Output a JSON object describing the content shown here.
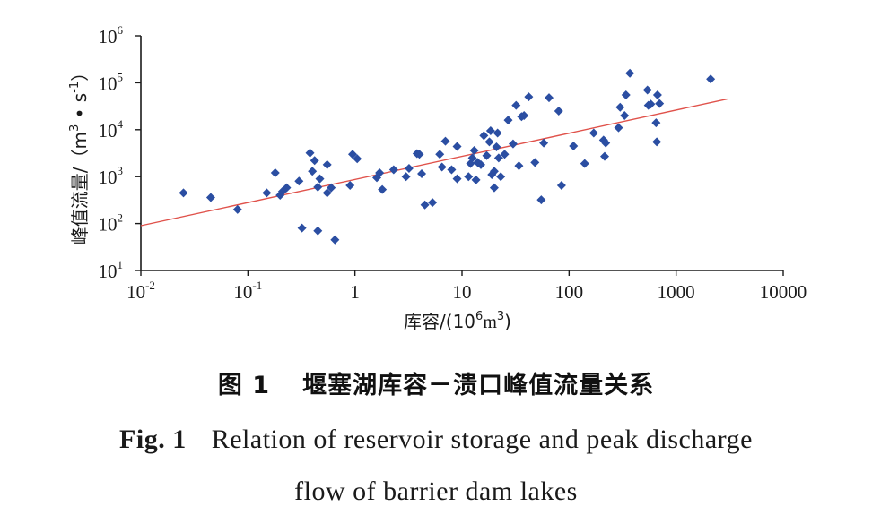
{
  "chart_data": {
    "type": "scatter",
    "x_scale": "log",
    "y_scale": "log",
    "xlim": [
      0.01,
      10000
    ],
    "ylim": [
      10,
      1000000
    ],
    "x_ticks": [
      {
        "value": 0.01,
        "base": "10",
        "exp": "-2"
      },
      {
        "value": 0.1,
        "base": "10",
        "exp": "-1"
      },
      {
        "value": 1,
        "base": "1",
        "exp": ""
      },
      {
        "value": 10,
        "base": "10",
        "exp": ""
      },
      {
        "value": 100,
        "base": "100",
        "exp": ""
      },
      {
        "value": 1000,
        "base": "1000",
        "exp": ""
      },
      {
        "value": 10000,
        "base": "10000",
        "exp": ""
      }
    ],
    "y_ticks": [
      {
        "value": 10,
        "base": "10",
        "exp": "1"
      },
      {
        "value": 100,
        "base": "10",
        "exp": "2"
      },
      {
        "value": 1000,
        "base": "10",
        "exp": "3"
      },
      {
        "value": 10000,
        "base": "10",
        "exp": "4"
      },
      {
        "value": 100000,
        "base": "10",
        "exp": "5"
      },
      {
        "value": 1000000,
        "base": "10",
        "exp": "6"
      }
    ],
    "xlabel": {
      "prefix": "库容/(10",
      "exp1": "6",
      "mid": "m",
      "exp2": "3",
      "suffix": ")"
    },
    "ylabel": {
      "prefix": "峰值流量/（m",
      "exp1": "3",
      "mid": " • s",
      "exp2": "-1",
      "suffix": "）"
    },
    "grid": false,
    "marker_color": "#2b4ea2",
    "trend_color": "#e0524b",
    "trend_line": {
      "x": [
        0.01,
        3000
      ],
      "y": [
        90,
        45000
      ]
    },
    "points": [
      [
        0.025,
        450
      ],
      [
        0.045,
        360
      ],
      [
        0.08,
        200
      ],
      [
        0.15,
        450
      ],
      [
        0.18,
        1200
      ],
      [
        0.2,
        400
      ],
      [
        0.21,
        480
      ],
      [
        0.23,
        580
      ],
      [
        0.3,
        800
      ],
      [
        0.32,
        80
      ],
      [
        0.38,
        3200
      ],
      [
        0.4,
        1300
      ],
      [
        0.42,
        2200
      ],
      [
        0.45,
        600
      ],
      [
        0.45,
        70
      ],
      [
        0.47,
        900
      ],
      [
        0.55,
        450
      ],
      [
        0.55,
        1800
      ],
      [
        0.6,
        580
      ],
      [
        0.65,
        45
      ],
      [
        0.9,
        650
      ],
      [
        0.95,
        3000
      ],
      [
        1.05,
        2400
      ],
      [
        1.6,
        950
      ],
      [
        1.7,
        1200
      ],
      [
        1.8,
        530
      ],
      [
        2.3,
        1400
      ],
      [
        3.0,
        1000
      ],
      [
        3.2,
        1500
      ],
      [
        3.8,
        3100
      ],
      [
        4.0,
        3000
      ],
      [
        4.2,
        1150
      ],
      [
        4.5,
        250
      ],
      [
        5.3,
        280
      ],
      [
        6.2,
        3000
      ],
      [
        6.5,
        1600
      ],
      [
        7.0,
        5700
      ],
      [
        8.0,
        1400
      ],
      [
        9.0,
        4400
      ],
      [
        9.0,
        900
      ],
      [
        11.5,
        1000
      ],
      [
        12.0,
        1900
      ],
      [
        12.5,
        2500
      ],
      [
        13.0,
        3600
      ],
      [
        13.5,
        850
      ],
      [
        14.0,
        2000
      ],
      [
        15.0,
        1800
      ],
      [
        16.0,
        7500
      ],
      [
        17.0,
        2800
      ],
      [
        18.0,
        5500
      ],
      [
        18.5,
        9500
      ],
      [
        19.0,
        1100
      ],
      [
        20.0,
        1300
      ],
      [
        20.0,
        580
      ],
      [
        21.0,
        4300
      ],
      [
        21.5,
        8500
      ],
      [
        22.0,
        2500
      ],
      [
        23.0,
        1000
      ],
      [
        25.0,
        3000
      ],
      [
        27.0,
        16000
      ],
      [
        30.0,
        5000
      ],
      [
        32.0,
        33000
      ],
      [
        34.0,
        1700
      ],
      [
        36.0,
        19000
      ],
      [
        38.0,
        20000
      ],
      [
        42.0,
        50000
      ],
      [
        48.0,
        2000
      ],
      [
        55.0,
        320
      ],
      [
        58.0,
        5200
      ],
      [
        65.0,
        48000
      ],
      [
        80.0,
        25000
      ],
      [
        85.0,
        650
      ],
      [
        110.0,
        4500
      ],
      [
        140.0,
        1900
      ],
      [
        170.0,
        8500
      ],
      [
        210.0,
        6000
      ],
      [
        215.0,
        2700
      ],
      [
        220.0,
        5200
      ],
      [
        290.0,
        11000
      ],
      [
        300.0,
        30000
      ],
      [
        330.0,
        20000
      ],
      [
        340.0,
        55000
      ],
      [
        370.0,
        160000
      ],
      [
        540.0,
        70000
      ],
      [
        550.0,
        33000
      ],
      [
        580.0,
        35000
      ],
      [
        650.0,
        14000
      ],
      [
        660.0,
        5500
      ],
      [
        670.0,
        55000
      ],
      [
        700.0,
        36000
      ],
      [
        2100.0,
        120000
      ]
    ]
  },
  "caption": {
    "zh_number": "图 1",
    "zh_text": "堰塞湖库容－溃口峰值流量关系",
    "en_number": "Fig. 1",
    "en_line1": "Relation of reservoir storage and peak discharge",
    "en_line2": "flow of barrier dam lakes"
  }
}
